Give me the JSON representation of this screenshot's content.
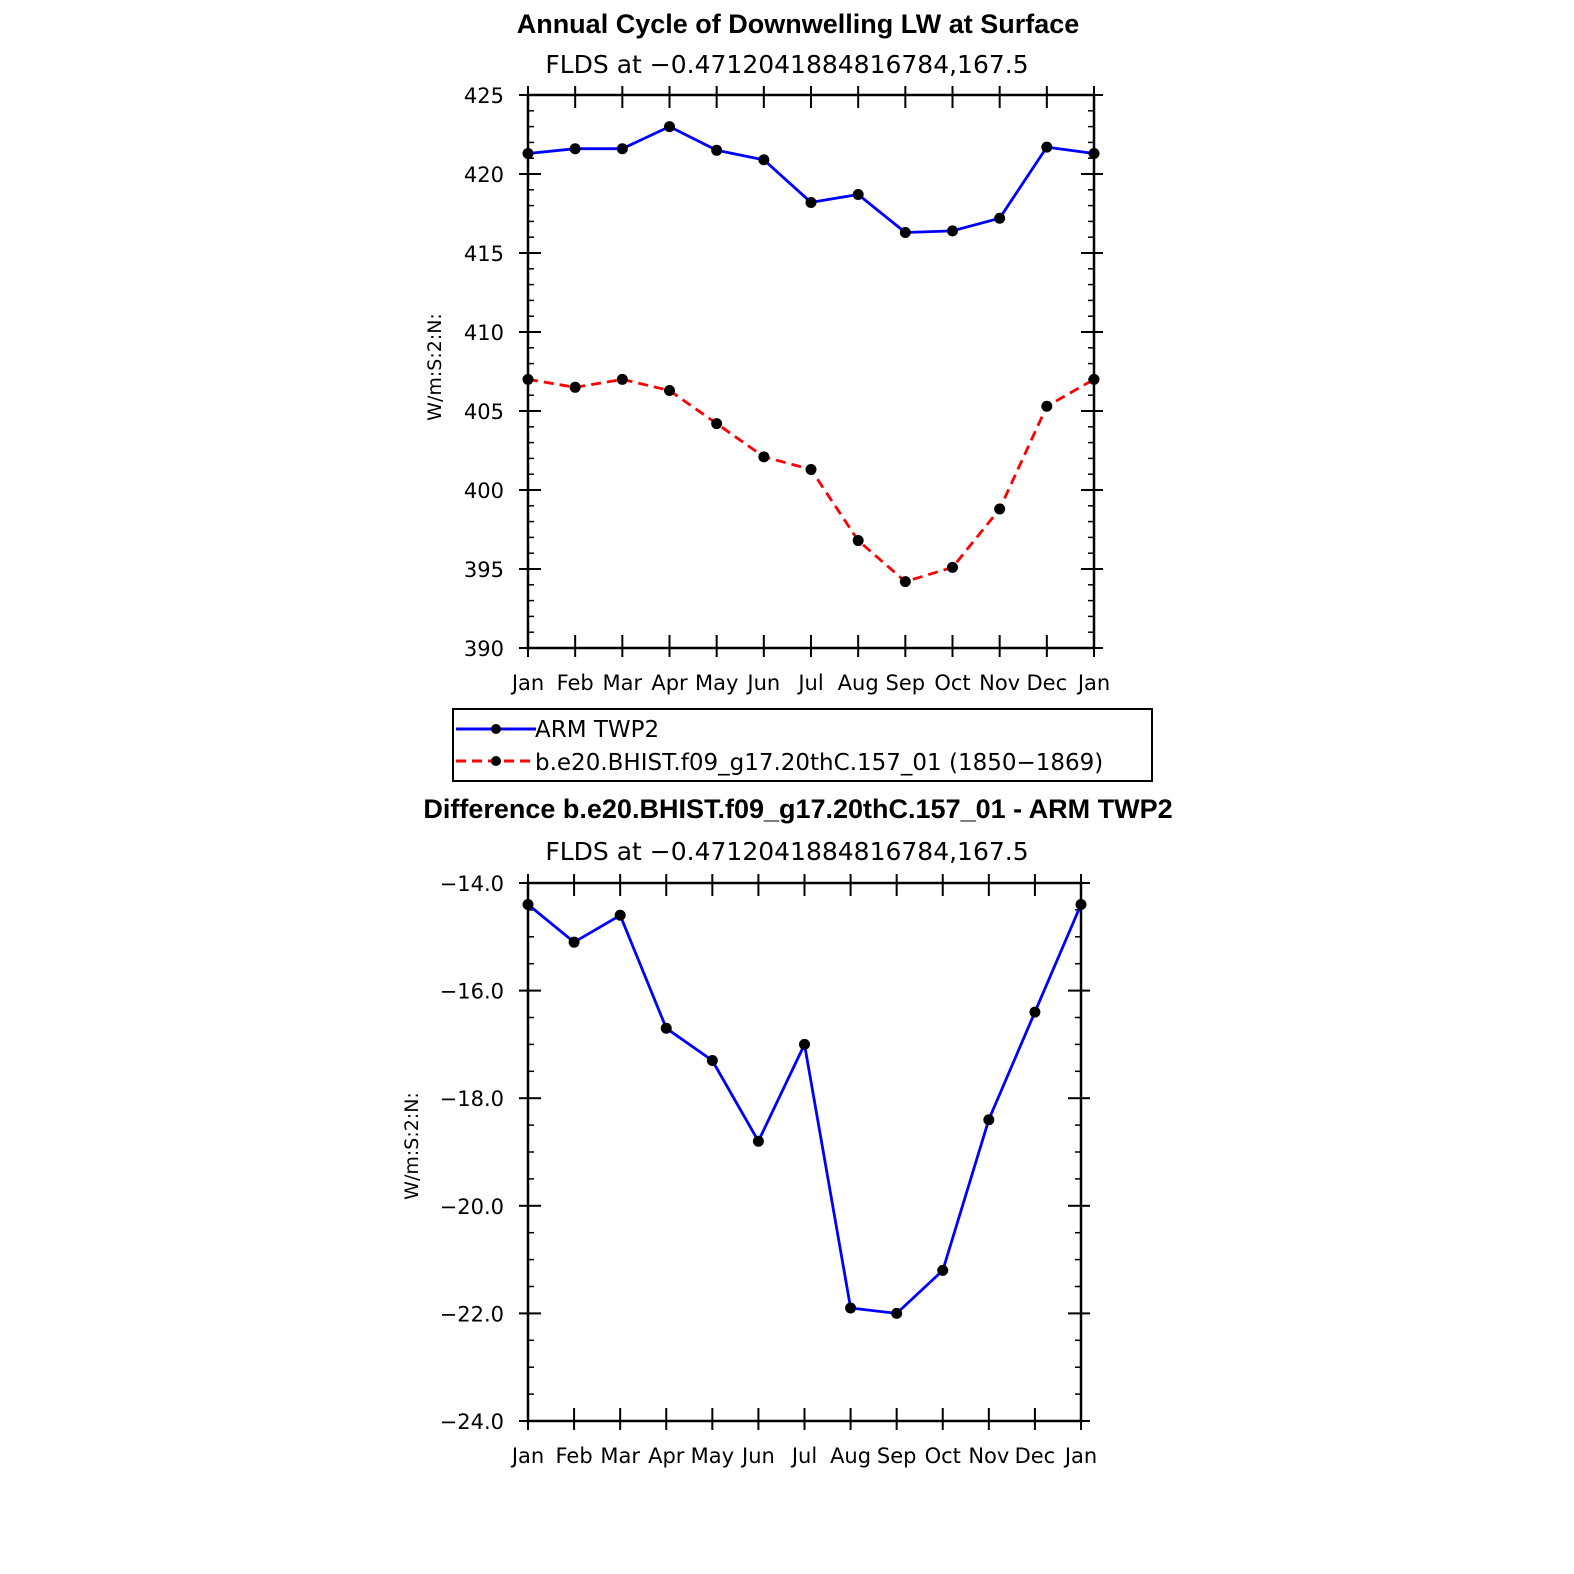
{
  "chart_data": [
    {
      "type": "line",
      "title": "Annual Cycle of Downwelling LW at Surface",
      "subtitle": "FLDS at −0.4712041884816784,167.5",
      "ylabel": "W/m:S:2:N:",
      "xlabel": "",
      "categories": [
        "Jan",
        "Feb",
        "Mar",
        "Apr",
        "May",
        "Jun",
        "Jul",
        "Aug",
        "Sep",
        "Oct",
        "Nov",
        "Dec",
        "Jan"
      ],
      "ylim": [
        390,
        425
      ],
      "yticks": [
        "390",
        "395",
        "400",
        "405",
        "410",
        "415",
        "420",
        "425"
      ],
      "series": [
        {
          "name": "ARM TWP2",
          "color": "#0000ff",
          "dash": "solid",
          "values": [
            421.3,
            421.6,
            421.6,
            423.0,
            421.5,
            420.9,
            418.2,
            418.7,
            416.3,
            416.4,
            417.2,
            421.7,
            421.3
          ]
        },
        {
          "name": "b.e20.BHIST.f09_g17.20thC.157_01 (1850−1869)",
          "color": "#ff0000",
          "dash": "dashed",
          "values": [
            407.0,
            406.5,
            407.0,
            406.3,
            404.2,
            402.1,
            401.3,
            396.8,
            394.2,
            395.1,
            398.8,
            405.3,
            407.0
          ]
        }
      ],
      "legend": "below",
      "grid": false
    },
    {
      "type": "line",
      "title": "Difference b.e20.BHIST.f09_g17.20thC.157_01 - ARM TWP2",
      "subtitle": "FLDS at −0.4712041884816784,167.5",
      "ylabel": "W/m:S:2:N:",
      "xlabel": "",
      "categories": [
        "Jan",
        "Feb",
        "Mar",
        "Apr",
        "May",
        "Jun",
        "Jul",
        "Aug",
        "Sep",
        "Oct",
        "Nov",
        "Dec",
        "Jan"
      ],
      "ylim": [
        -24.0,
        -14.0
      ],
      "yticks": [
        "−24.0",
        "−22.0",
        "−20.0",
        "−18.0",
        "−16.0",
        "−14.0"
      ],
      "series": [
        {
          "color": "#0000ff",
          "dash": "solid",
          "values": [
            -14.4,
            -15.1,
            -14.6,
            -16.7,
            -17.3,
            -18.8,
            -17.0,
            -21.9,
            -22.0,
            -21.2,
            -18.4,
            -16.4,
            -14.4
          ]
        }
      ],
      "grid": false
    }
  ]
}
